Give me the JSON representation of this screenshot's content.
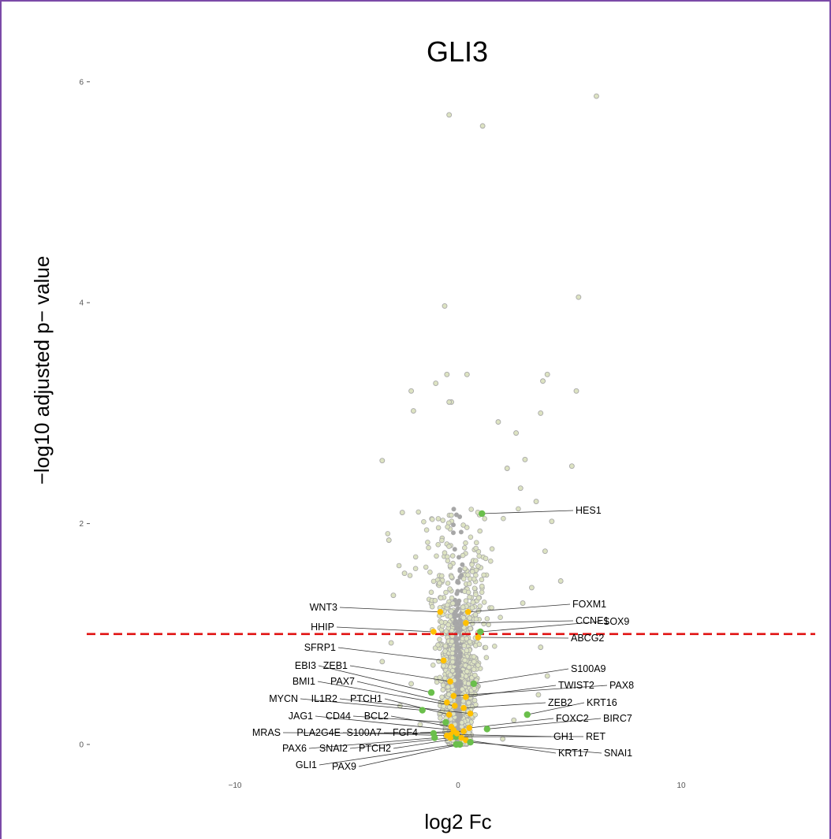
{
  "chart_data": {
    "type": "scatter",
    "title": "GLI3",
    "xlabel": "log2 Fc",
    "ylabel": "−log10 adjusted p− value",
    "xlim": [
      -16.5,
      16.5
    ],
    "ylim": [
      -0.28,
      6.55
    ],
    "x_ticks": [
      {
        "value": -10,
        "label": "−10"
      },
      {
        "value": 0,
        "label": "0"
      },
      {
        "value": 10,
        "label": "10"
      }
    ],
    "y_ticks": [
      {
        "value": 0,
        "label": "0"
      },
      {
        "value": 2,
        "label": "2"
      },
      {
        "value": 4,
        "label": "4"
      },
      {
        "value": 6,
        "label": "6"
      }
    ],
    "grid": false,
    "threshold": {
      "y": 1.0,
      "color": "#e01010",
      "style": "dashed"
    },
    "colors": {
      "background_points_fill": "#dde3c2",
      "background_points_stroke": "#a9a9a9",
      "dense_core": "#a6a6a6",
      "highlight_yellow": "#ffc000",
      "highlight_green": "#6abf4b",
      "border": "#7b4aa8"
    },
    "background_points": [
      {
        "x": 6.2,
        "y": 5.87
      },
      {
        "x": -0.4,
        "y": 5.7
      },
      {
        "x": 1.1,
        "y": 5.6
      },
      {
        "x": 5.4,
        "y": 4.05
      },
      {
        "x": -0.6,
        "y": 3.97
      },
      {
        "x": -0.5,
        "y": 3.35
      },
      {
        "x": 0.4,
        "y": 3.35
      },
      {
        "x": 4.0,
        "y": 3.35
      },
      {
        "x": 3.8,
        "y": 3.29
      },
      {
        "x": -1.0,
        "y": 3.27
      },
      {
        "x": -2.1,
        "y": 3.2
      },
      {
        "x": 5.3,
        "y": 3.2
      },
      {
        "x": -0.3,
        "y": 3.1
      },
      {
        "x": -0.4,
        "y": 3.1
      },
      {
        "x": -2.0,
        "y": 3.02
      },
      {
        "x": 3.7,
        "y": 3.0
      },
      {
        "x": 1.8,
        "y": 2.92
      },
      {
        "x": 2.6,
        "y": 2.82
      },
      {
        "x": 5.1,
        "y": 2.52
      },
      {
        "x": -3.4,
        "y": 2.57
      },
      {
        "x": 3.0,
        "y": 2.58
      },
      {
        "x": 2.2,
        "y": 2.5
      },
      {
        "x": 2.8,
        "y": 2.32
      },
      {
        "x": 3.5,
        "y": 2.2
      },
      {
        "x": -2.5,
        "y": 2.1
      },
      {
        "x": 4.2,
        "y": 2.02
      },
      {
        "x": -3.1,
        "y": 1.85
      },
      {
        "x": 3.9,
        "y": 1.75
      },
      {
        "x": -2.4,
        "y": 1.55
      },
      {
        "x": 4.6,
        "y": 1.48
      },
      {
        "x": 3.3,
        "y": 1.42
      },
      {
        "x": -2.9,
        "y": 1.35
      },
      {
        "x": 2.9,
        "y": 1.28
      },
      {
        "x": -3.0,
        "y": 0.92
      },
      {
        "x": 3.7,
        "y": 0.88
      },
      {
        "x": -3.4,
        "y": 0.75
      },
      {
        "x": 4.0,
        "y": 0.62
      },
      {
        "x": -2.1,
        "y": 0.55
      },
      {
        "x": 3.6,
        "y": 0.45
      },
      {
        "x": -2.6,
        "y": 0.35
      },
      {
        "x": 2.5,
        "y": 0.22
      },
      {
        "x": -1.7,
        "y": 0.18
      },
      {
        "x": 2.0,
        "y": 0.05
      }
    ],
    "highlighted_genes": [
      {
        "gene": "HES1",
        "x": 1.07,
        "y": 2.09,
        "color": "green"
      },
      {
        "gene": "WNT3",
        "x": -0.8,
        "y": 1.2,
        "color": "yellow"
      },
      {
        "gene": "FOXM1",
        "x": 0.45,
        "y": 1.2,
        "color": "yellow"
      },
      {
        "gene": "CCNE1",
        "x": 0.35,
        "y": 1.1,
        "color": "yellow"
      },
      {
        "gene": "SOX9",
        "x": 1.0,
        "y": 1.02,
        "color": "green"
      },
      {
        "gene": "HHIP",
        "x": -1.1,
        "y": 1.02,
        "color": "yellow"
      },
      {
        "gene": "ABCG2",
        "x": 0.9,
        "y": 0.97,
        "color": "yellow"
      },
      {
        "gene": "SFRP1",
        "x": -0.65,
        "y": 0.76,
        "color": "yellow"
      },
      {
        "gene": "S100A9",
        "x": 0.7,
        "y": 0.55,
        "color": "green"
      },
      {
        "gene": "ZEB1",
        "x": -0.35,
        "y": 0.57,
        "color": "yellow"
      },
      {
        "gene": "EBI3",
        "x": -1.2,
        "y": 0.47,
        "color": "green"
      },
      {
        "gene": "TWIST2",
        "x": 0.35,
        "y": 0.43,
        "color": "yellow"
      },
      {
        "gene": "PAX8",
        "x": -0.2,
        "y": 0.44,
        "color": "yellow"
      },
      {
        "gene": "PAX7",
        "x": -0.5,
        "y": 0.38,
        "color": "yellow"
      },
      {
        "gene": "BMI1",
        "x": -0.15,
        "y": 0.35,
        "color": "yellow"
      },
      {
        "gene": "ZEB2",
        "x": 0.25,
        "y": 0.33,
        "color": "yellow"
      },
      {
        "gene": "KRT16",
        "x": 3.1,
        "y": 0.27,
        "color": "green"
      },
      {
        "gene": "PTCH1",
        "x": -0.4,
        "y": 0.27,
        "color": "yellow"
      },
      {
        "gene": "IL1R2",
        "x": 0.55,
        "y": 0.28,
        "color": "yellow"
      },
      {
        "gene": "MYCN",
        "x": -1.6,
        "y": 0.31,
        "color": "green"
      },
      {
        "gene": "FOXC2",
        "x": 0.5,
        "y": 0.15,
        "color": "yellow"
      },
      {
        "gene": "BIRC7",
        "x": 1.3,
        "y": 0.14,
        "color": "green"
      },
      {
        "gene": "BCL2",
        "x": -0.3,
        "y": 0.16,
        "color": "yellow"
      },
      {
        "gene": "CD44",
        "x": -0.55,
        "y": 0.2,
        "color": "green"
      },
      {
        "gene": "JAG1",
        "x": -0.2,
        "y": 0.13,
        "color": "yellow"
      },
      {
        "gene": "GH1",
        "x": -0.3,
        "y": 0.09,
        "color": "yellow"
      },
      {
        "gene": "RET",
        "x": -0.1,
        "y": 0.07,
        "color": "green"
      },
      {
        "gene": "FGF4",
        "x": 0.25,
        "y": 0.12,
        "color": "yellow"
      },
      {
        "gene": "S100A7",
        "x": -0.05,
        "y": 0.1,
        "color": "yellow"
      },
      {
        "gene": "PLA2G4E",
        "x": -0.5,
        "y": 0.08,
        "color": "yellow"
      },
      {
        "gene": "MRAS",
        "x": -1.1,
        "y": 0.1,
        "color": "green"
      },
      {
        "gene": "PAX6",
        "x": -1.05,
        "y": 0.06,
        "color": "green"
      },
      {
        "gene": "SNAI2",
        "x": -0.35,
        "y": 0.06,
        "color": "yellow"
      },
      {
        "gene": "PTCH2",
        "x": 0.15,
        "y": 0.06,
        "color": "yellow"
      },
      {
        "gene": "KRT17",
        "x": 0.35,
        "y": 0.04,
        "color": "yellow"
      },
      {
        "gene": "SNAI1",
        "x": 0.55,
        "y": 0.02,
        "color": "green"
      },
      {
        "gene": "GLI1",
        "x": -0.08,
        "y": 0.0,
        "color": "green"
      },
      {
        "gene": "PAX9",
        "x": 0.08,
        "y": 0.0,
        "color": "green"
      }
    ]
  }
}
